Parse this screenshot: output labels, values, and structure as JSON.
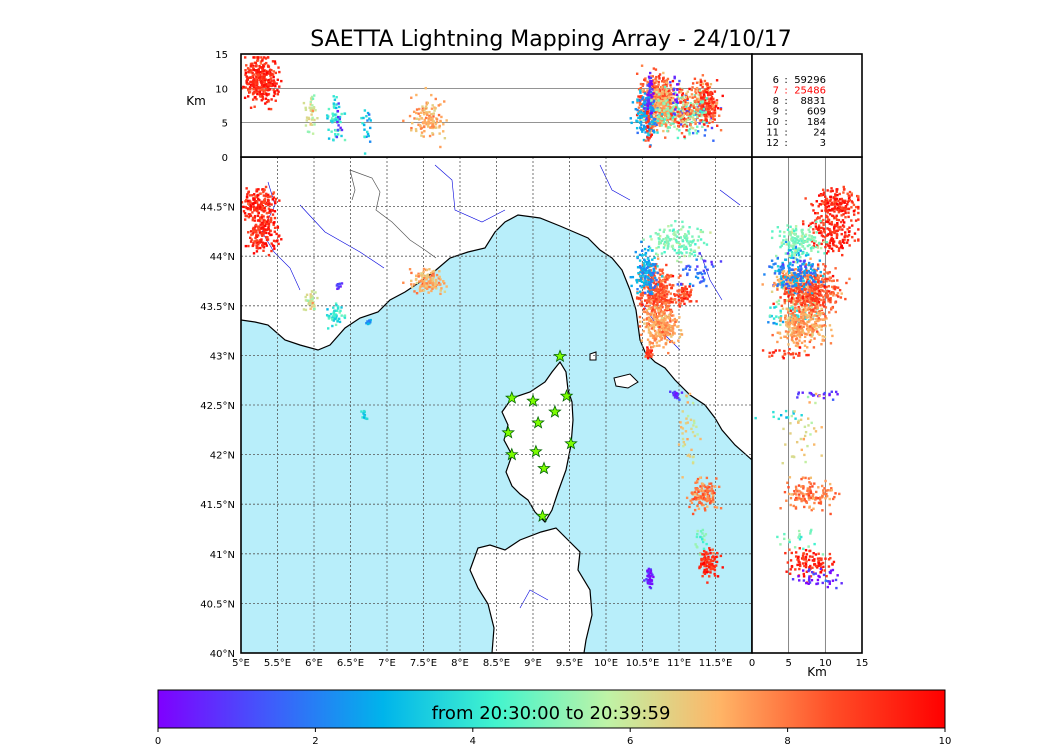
{
  "chart_data": {
    "type": "scatter",
    "title": "SAETTA Lightning Mapping Array - 24/10/17",
    "map": {
      "lon_range": [
        5,
        12
      ],
      "lat_range": [
        40,
        45
      ],
      "lon_ticks": [
        "5°E",
        "5.5°E",
        "6°E",
        "6.5°E",
        "7°E",
        "7.5°E",
        "8°E",
        "8.5°E",
        "9°E",
        "9.5°E",
        "10°E",
        "10.5°E",
        "11°E",
        "11.5°E"
      ],
      "lat_ticks": [
        "40°N",
        "40.5°N",
        "41°N",
        "41.5°N",
        "42°N",
        "42.5°N",
        "43°N",
        "43.5°N",
        "44°N",
        "44.5°N"
      ],
      "grid": "dashed",
      "sea_color": "#b8eefa",
      "stations": [
        [
          9.37,
          42.99
        ],
        [
          8.71,
          42.57
        ],
        [
          9.0,
          42.54
        ],
        [
          9.46,
          42.59
        ],
        [
          9.3,
          42.43
        ],
        [
          9.07,
          42.32
        ],
        [
          8.66,
          42.22
        ],
        [
          9.52,
          42.11
        ],
        [
          8.71,
          42.0
        ],
        [
          9.04,
          42.03
        ],
        [
          9.15,
          41.86
        ],
        [
          9.13,
          41.38
        ]
      ]
    },
    "altitude_axis": {
      "label": "Km",
      "range": [
        0,
        15
      ],
      "ticks": [
        "0",
        "5",
        "10",
        "15"
      ]
    },
    "counts": [
      {
        "label": "6",
        "value": "59296",
        "color": "#000000"
      },
      {
        "label": "7",
        "value": "25486",
        "color": "#ff0000"
      },
      {
        "label": "8",
        "value": "8831",
        "color": "#000000"
      },
      {
        "label": "9",
        "value": "609",
        "color": "#000000"
      },
      {
        "label": "10",
        "value": "184",
        "color": "#000000"
      },
      {
        "label": "11",
        "value": "24",
        "color": "#000000"
      },
      {
        "label": "12",
        "value": "3",
        "color": "#000000"
      }
    ],
    "colorbar": {
      "label": "from 20:30:00 to 20:39:59",
      "range": [
        0,
        10
      ],
      "ticks": [
        "0",
        "2",
        "4",
        "6",
        "8",
        "10"
      ],
      "colormap": [
        "#7f00ff",
        "#3f5cfb",
        "#00b4eb",
        "#42f4ce",
        "#bff3a6",
        "#ffb466",
        "#ff4d27",
        "#ff0000"
      ]
    },
    "clusters": [
      {
        "lon": 5.25,
        "lat": 44.5,
        "alt": 11.5,
        "t": 9.2,
        "n": 180,
        "sx": 0.12,
        "sy": 0.08
      },
      {
        "lon": 5.3,
        "lat": 44.22,
        "alt": 11.0,
        "t": 9.3,
        "n": 150,
        "sx": 0.1,
        "sy": 0.1
      },
      {
        "lon": 5.95,
        "lat": 43.55,
        "alt": 6.5,
        "t": 6.2,
        "n": 40,
        "sx": 0.05,
        "sy": 0.05
      },
      {
        "lon": 6.3,
        "lat": 43.4,
        "alt": 6.0,
        "t": 4.0,
        "n": 50,
        "sx": 0.06,
        "sy": 0.05
      },
      {
        "lon": 6.35,
        "lat": 43.7,
        "alt": 5.5,
        "t": 1.2,
        "n": 10,
        "sx": 0.02,
        "sy": 0.02
      },
      {
        "lon": 6.75,
        "lat": 43.35,
        "alt": 4.0,
        "t": 2.5,
        "n": 10,
        "sx": 0.02,
        "sy": 0.02
      },
      {
        "lon": 6.7,
        "lat": 42.4,
        "alt": 4.0,
        "t": 3.6,
        "n": 12,
        "sx": 0.02,
        "sy": 0.02
      },
      {
        "lon": 7.55,
        "lat": 43.75,
        "alt": 5.5,
        "t": 7.2,
        "n": 120,
        "sx": 0.12,
        "sy": 0.06
      },
      {
        "lon": 10.7,
        "lat": 43.65,
        "alt": 8.5,
        "t": 8.5,
        "n": 320,
        "sx": 0.12,
        "sy": 0.12
      },
      {
        "lon": 10.75,
        "lat": 43.3,
        "alt": 7.0,
        "t": 7.4,
        "n": 280,
        "sx": 0.12,
        "sy": 0.1
      },
      {
        "lon": 10.55,
        "lat": 43.85,
        "alt": 6.0,
        "t": 2.6,
        "n": 140,
        "sx": 0.08,
        "sy": 0.12
      },
      {
        "lon": 11.0,
        "lat": 44.15,
        "alt": 6.5,
        "t": 5.0,
        "n": 140,
        "sx": 0.18,
        "sy": 0.08
      },
      {
        "lon": 11.25,
        "lat": 43.85,
        "alt": 6.0,
        "t": 1.5,
        "n": 40,
        "sx": 0.12,
        "sy": 0.08
      },
      {
        "lon": 11.05,
        "lat": 43.6,
        "alt": 7.0,
        "t": 8.9,
        "n": 60,
        "sx": 0.08,
        "sy": 0.05
      },
      {
        "lon": 10.58,
        "lat": 43.02,
        "alt": 5.0,
        "t": 9.0,
        "n": 25,
        "sx": 0.03,
        "sy": 0.03
      },
      {
        "lon": 10.95,
        "lat": 42.6,
        "alt": 9.0,
        "t": 0.8,
        "n": 20,
        "sx": 0.04,
        "sy": 0.02
      },
      {
        "lon": 11.15,
        "lat": 42.2,
        "alt": 7.0,
        "t": 6.5,
        "n": 40,
        "sx": 0.06,
        "sy": 0.2
      },
      {
        "lon": 11.35,
        "lat": 41.6,
        "alt": 8.0,
        "t": 8.0,
        "n": 130,
        "sx": 0.1,
        "sy": 0.08
      },
      {
        "lon": 11.4,
        "lat": 40.9,
        "alt": 8.0,
        "t": 9.2,
        "n": 100,
        "sx": 0.07,
        "sy": 0.07
      },
      {
        "lon": 11.3,
        "lat": 41.15,
        "alt": 6.5,
        "t": 5.0,
        "n": 20,
        "sx": 0.05,
        "sy": 0.08
      },
      {
        "lon": 10.6,
        "lat": 40.75,
        "alt": 9.0,
        "t": 0.5,
        "n": 40,
        "sx": 0.03,
        "sy": 0.06
      }
    ]
  }
}
